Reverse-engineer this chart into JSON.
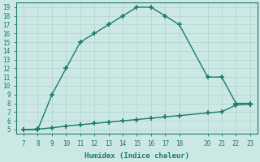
{
  "xlabel": "Humidex (Indice chaleur)",
  "bg_color": "#cce8e4",
  "line_color": "#1a7a6e",
  "grid_color": "#b8d8d4",
  "x_main": [
    7,
    8,
    9,
    10,
    11,
    12,
    13,
    14,
    15,
    16,
    17,
    18,
    20,
    21,
    22,
    23
  ],
  "y_main": [
    5,
    5,
    9,
    12,
    15,
    16,
    17,
    18,
    19,
    19,
    18,
    17,
    11,
    11,
    8,
    8
  ],
  "x_flat": [
    7,
    8,
    9,
    10,
    11,
    12,
    13,
    14,
    15,
    16,
    17,
    18,
    20,
    21,
    22,
    23
  ],
  "y_flat": [
    5.0,
    5.05,
    5.2,
    5.4,
    5.55,
    5.7,
    5.85,
    6.0,
    6.15,
    6.3,
    6.45,
    6.6,
    6.9,
    7.05,
    7.8,
    7.9
  ],
  "xlim": [
    6.5,
    23.5
  ],
  "ylim": [
    4.5,
    19.5
  ],
  "xticks": [
    7,
    8,
    9,
    10,
    11,
    12,
    13,
    14,
    15,
    16,
    17,
    18,
    20,
    21,
    22,
    23
  ],
  "yticks": [
    5,
    6,
    7,
    8,
    9,
    10,
    11,
    12,
    13,
    14,
    15,
    16,
    17,
    18,
    19
  ],
  "marker_size": 4.0,
  "line_width": 1.0,
  "tick_fontsize": 5.5,
  "xlabel_fontsize": 6.5
}
